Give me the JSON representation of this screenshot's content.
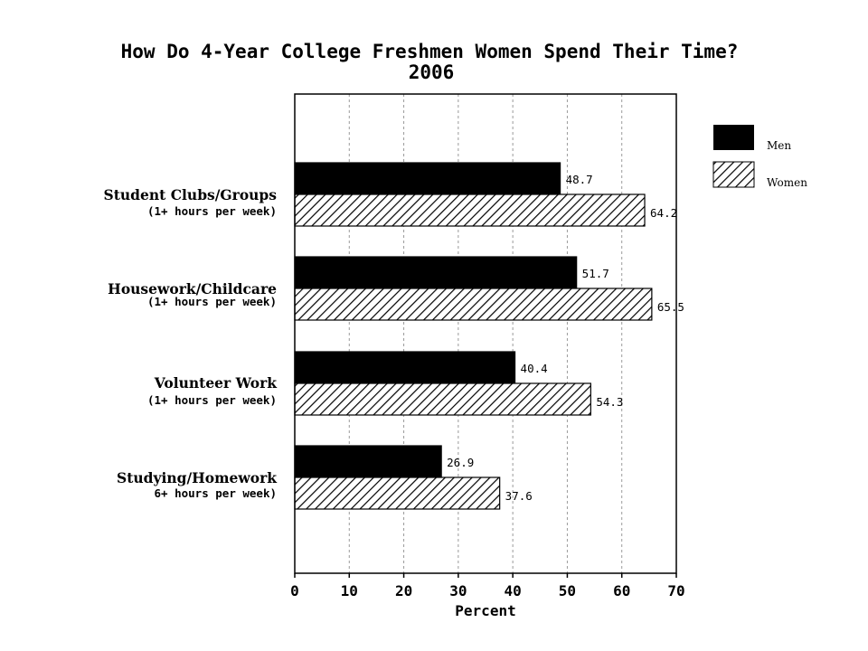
{
  "chart_data": {
    "type": "bar",
    "orientation": "horizontal",
    "title": "How Do 4-Year College Freshmen Women Spend Their Time?",
    "subtitle": "2006",
    "xlabel": "Percent",
    "xlim": [
      0,
      70
    ],
    "xticks": [
      0,
      10,
      20,
      30,
      40,
      50,
      60,
      70
    ],
    "grid": "vertical dashed",
    "legend_position": "right",
    "categories": [
      {
        "label": "Student Clubs/Groups",
        "sublabel": "(1+ hours per week)"
      },
      {
        "label": "Housework/Childcare",
        "sublabel": "(1+ hours per week)"
      },
      {
        "label": "Volunteer Work",
        "sublabel": "(1+ hours per week)"
      },
      {
        "label": "Studying/Homework",
        "sublabel": "6+ hours per week)"
      }
    ],
    "series": [
      {
        "name": "Men",
        "fill": "solid",
        "color": "#000000",
        "values": [
          48.7,
          51.7,
          40.4,
          26.9
        ],
        "labels": [
          "48.7",
          "51.7",
          "40.4",
          "26.9"
        ]
      },
      {
        "name": "Women",
        "fill": "hatched",
        "color": "#000000",
        "values": [
          64.2,
          65.5,
          54.3,
          37.6
        ],
        "labels": [
          "64.2",
          "65.5",
          "54.3",
          "37.6"
        ]
      }
    ]
  }
}
